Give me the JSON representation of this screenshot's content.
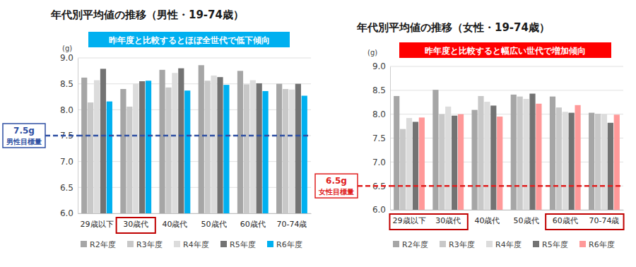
{
  "chart_data": [
    {
      "type": "bar",
      "title": "年代別平均値の推移（男性・19-74歳）",
      "y_label": "(g)",
      "annotation": {
        "text": "昨年度と比較するとほぼ全世代で低下傾向",
        "color": "#00b0f0"
      },
      "reference_line": {
        "value": 7.5,
        "label": "7.5g",
        "sublabel": "男性目標量",
        "color": "#2e4fa3"
      },
      "highlighted": [
        "30歳代"
      ],
      "categories": [
        "29歳以下",
        "30歳代",
        "40歳代",
        "50歳代",
        "60歳代",
        "70-74歳"
      ],
      "series": [
        {
          "name": "R2年度",
          "color": "#a6a6a6",
          "values": [
            8.62,
            8.4,
            8.77,
            8.86,
            8.75,
            8.5
          ]
        },
        {
          "name": "R3年度",
          "color": "#c8c8c8",
          "values": [
            8.14,
            8.06,
            8.43,
            8.56,
            8.49,
            8.4
          ]
        },
        {
          "name": "R4年度",
          "color": "#dcdcdc",
          "values": [
            8.57,
            8.5,
            8.71,
            8.66,
            8.57,
            8.39
          ]
        },
        {
          "name": "R5年度",
          "color": "#737373",
          "values": [
            8.79,
            8.55,
            8.8,
            8.63,
            8.51,
            8.5
          ]
        },
        {
          "name": "R6年度",
          "color": "#00b0f0",
          "values": [
            8.16,
            8.56,
            8.37,
            8.48,
            8.36,
            8.27
          ]
        }
      ],
      "ylim": [
        6,
        9
      ],
      "yticks": [
        {
          "value": 6,
          "label": "6.0"
        },
        {
          "value": 6.5,
          "label": "6.5"
        },
        {
          "value": 7,
          "label": "7.0"
        },
        {
          "value": 7.5,
          "label": "7.5"
        },
        {
          "value": 8,
          "label": "8.0"
        },
        {
          "value": 8.5,
          "label": "8.5"
        },
        {
          "value": 9,
          "label": "9.0"
        }
      ],
      "grid": true,
      "legend": "bottom"
    },
    {
      "type": "bar",
      "title": "年代別平均値の推移（女性・19-74歳）",
      "y_label": "(g)",
      "annotation": {
        "text": "昨年度と比較すると幅広い世代で増加傾向",
        "color": "#ff0000"
      },
      "reference_line": {
        "value": 6.5,
        "label": "6.5g",
        "sublabel": "女性目標量",
        "color": "#e02020"
      },
      "highlighted": [
        "29歳以下",
        "30歳代",
        "60歳代",
        "70-74歳"
      ],
      "categories": [
        "29歳以下",
        "30歳代",
        "40歳代",
        "50歳代",
        "60歳代",
        "70-74歳"
      ],
      "series": [
        {
          "name": "R2年度",
          "color": "#a6a6a6",
          "values": [
            8.38,
            8.51,
            8.09,
            8.41,
            8.37,
            8.03
          ]
        },
        {
          "name": "R3年度",
          "color": "#c8c8c8",
          "values": [
            7.69,
            8.0,
            8.38,
            8.37,
            8.14,
            8.01
          ]
        },
        {
          "name": "R4年度",
          "color": "#dcdcdc",
          "values": [
            7.92,
            8.16,
            8.26,
            8.32,
            8.05,
            8.0
          ]
        },
        {
          "name": "R5年度",
          "color": "#737373",
          "values": [
            7.84,
            7.97,
            8.18,
            8.43,
            8.03,
            7.82
          ]
        },
        {
          "name": "R6年度",
          "color": "#ff9999",
          "values": [
            7.93,
            8.0,
            7.95,
            8.22,
            8.19,
            7.99
          ]
        }
      ],
      "ylim": [
        6,
        9
      ],
      "yticks": [
        {
          "value": 6,
          "label": "6.0"
        },
        {
          "value": 6.5,
          "label": "6.5"
        },
        {
          "value": 7,
          "label": "7.0"
        },
        {
          "value": 7.5,
          "label": "7.5"
        },
        {
          "value": 8,
          "label": "8.0"
        },
        {
          "value": 8.5,
          "label": "8.5"
        },
        {
          "value": 9,
          "label": "9.0"
        }
      ],
      "grid": true,
      "legend": "bottom"
    }
  ]
}
